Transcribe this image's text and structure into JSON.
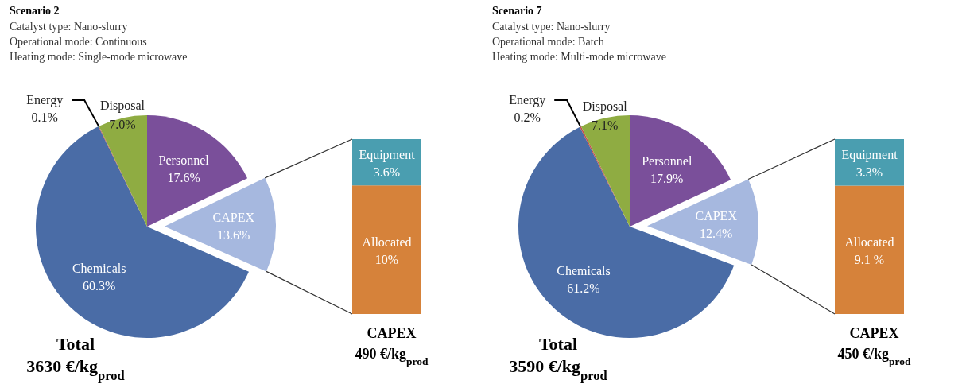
{
  "chart_data": [
    {
      "type": "pie",
      "title": "Scenario 2",
      "subtitle": "Catalyst type: Nano-slurry\nOperational mode: Continuous\nHeating mode:  Single-mode microwave",
      "annotations": [
        "Total\n3630 €/kg$_{prod}$"
      ],
      "categories": [
        "Personnel",
        "CAPEX",
        "Chemicals",
        "Energy",
        "Disposal"
      ],
      "values": [
        17.6,
        13.6,
        60.3,
        0.1,
        7.0
      ],
      "value_labels": [
        "17.6%",
        "13.6%",
        "60.3%",
        "0.1%",
        "7.0%"
      ],
      "colors": [
        "#7a4f9a",
        "#a6b8df",
        "#4a6ca6",
        "#c0504d",
        "#8fac42"
      ]
    },
    {
      "type": "bar",
      "title": "CAPEX\n490 €/kg$_{prod}$",
      "categories": [
        null
      ],
      "stacked": true,
      "series": [
        {
          "name": "Allocated",
          "color": "#d6823a",
          "values": [
            10
          ],
          "value_labels": [
            "10%"
          ]
        },
        {
          "name": "Equipment",
          "color": "#4a9eb0",
          "values": [
            3.6
          ],
          "value_labels": [
            "3.6%"
          ]
        }
      ]
    },
    {
      "type": "pie",
      "title": "Scenario 7",
      "subtitle": "Catalyst type: Nano-slurry\nOperational mode: Batch\nHeating mode:  Multi-mode microwave",
      "annotations": [
        "Total\n3590 €/kg$_{prod}$"
      ],
      "categories": [
        "Personnel",
        "CAPEX",
        "Chemicals",
        "Energy",
        "Disposal"
      ],
      "values": [
        17.9,
        12.4,
        61.2,
        0.2,
        7.1
      ],
      "value_labels": [
        "17.9%",
        "12.4%",
        "61.2%",
        "0.2%",
        "7.1%"
      ],
      "colors": [
        "#7a4f9a",
        "#a6b8df",
        "#4a6ca6",
        "#c0504d",
        "#8fac42"
      ]
    },
    {
      "type": "bar",
      "title": "CAPEX\n450 €/kg$_{prod}$",
      "categories": [
        null
      ],
      "stacked": true,
      "series": [
        {
          "name": "Allocated",
          "color": "#d6823a",
          "values": [
            9.1
          ],
          "value_labels": [
            "9.1 %"
          ]
        },
        {
          "name": "Equipment",
          "color": "#4a9eb0",
          "values": [
            3.3
          ],
          "value_labels": [
            "3.3%"
          ]
        }
      ]
    }
  ]
}
